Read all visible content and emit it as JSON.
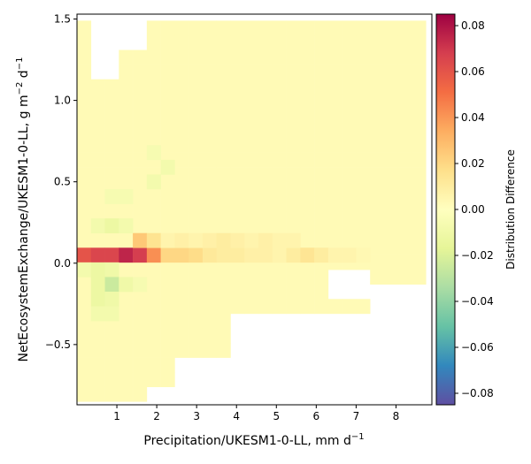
{
  "chart_data": {
    "type": "heatmap",
    "title": "",
    "xlabel": "Precipitation/UKESM1-0-LL,  mm d",
    "xlabel_sup": "−1",
    "ylabel": "NetEcosystemExchange/UKESM1-0-LL,  g m",
    "ylabel_sup1": "−2",
    "ylabel_mid": " d",
    "ylabel_sup2": "−1",
    "xlim": [
      0.0,
      8.9
    ],
    "ylim": [
      -0.87,
      1.53
    ],
    "x_ticks": [
      1,
      2,
      3,
      4,
      5,
      6,
      7,
      8
    ],
    "x_tick_labels": [
      "1",
      "2",
      "3",
      "4",
      "5",
      "6",
      "7",
      "8"
    ],
    "y_ticks": [
      -0.5,
      0.0,
      0.5,
      1.0,
      1.5
    ],
    "y_tick_labels": [
      "−0.5",
      "0.0",
      "0.5",
      "1.0",
      "1.5"
    ],
    "grid": false,
    "x_bin_width": 0.35,
    "y_bin_height": 0.09,
    "colorscale": "Spectral_r",
    "colorbar": {
      "label": "Distribution Difference",
      "range": [
        -0.085,
        0.085
      ],
      "ticks": [
        -0.08,
        -0.06,
        -0.04,
        -0.02,
        0.0,
        0.02,
        0.04,
        0.06,
        0.08
      ],
      "tick_labels": [
        "−0.08",
        "−0.06",
        "−0.04",
        "−0.02",
        "0.00",
        "0.02",
        "0.04",
        "0.06",
        "0.08"
      ]
    },
    "cells": [
      [
        0.175,
        0.05,
        0.06
      ],
      [
        0.525,
        0.05,
        0.065
      ],
      [
        0.875,
        0.05,
        0.065
      ],
      [
        1.225,
        0.05,
        0.075
      ],
      [
        1.575,
        0.05,
        0.068
      ],
      [
        1.925,
        0.05,
        0.042
      ],
      [
        2.275,
        0.05,
        0.02
      ],
      [
        2.625,
        0.05,
        0.02
      ],
      [
        2.975,
        0.05,
        0.018
      ],
      [
        3.325,
        0.05,
        0.012
      ],
      [
        3.675,
        0.05,
        0.01
      ],
      [
        4.025,
        0.05,
        0.01
      ],
      [
        4.375,
        0.05,
        0.008
      ],
      [
        4.725,
        0.05,
        0.008
      ],
      [
        5.075,
        0.05,
        0.006
      ],
      [
        5.425,
        0.05,
        0.01
      ],
      [
        5.775,
        0.05,
        0.014
      ],
      [
        6.125,
        0.05,
        0.01
      ],
      [
        6.475,
        0.05,
        0.006
      ],
      [
        6.825,
        0.05,
        0.006
      ],
      [
        7.175,
        0.05,
        0.004
      ],
      [
        1.575,
        0.14,
        0.025
      ],
      [
        1.925,
        0.14,
        0.015
      ],
      [
        2.275,
        0.14,
        0.006
      ],
      [
        2.625,
        0.14,
        0.008
      ],
      [
        2.975,
        0.14,
        0.006
      ],
      [
        3.325,
        0.14,
        0.008
      ],
      [
        3.675,
        0.14,
        0.01
      ],
      [
        4.025,
        0.14,
        0.008
      ],
      [
        4.375,
        0.14,
        0.006
      ],
      [
        4.725,
        0.14,
        0.008
      ],
      [
        5.075,
        0.14,
        0.006
      ],
      [
        5.425,
        0.14,
        0.006
      ],
      [
        0.525,
        0.23,
        -0.008
      ],
      [
        0.875,
        0.23,
        -0.012
      ],
      [
        1.225,
        0.23,
        -0.008
      ],
      [
        0.875,
        0.41,
        -0.006
      ],
      [
        1.225,
        0.41,
        -0.006
      ],
      [
        1.925,
        0.5,
        -0.008
      ],
      [
        2.275,
        0.59,
        -0.008
      ],
      [
        1.925,
        0.68,
        -0.006
      ],
      [
        0.175,
        -0.04,
        -0.008
      ],
      [
        0.525,
        -0.04,
        -0.012
      ],
      [
        0.875,
        -0.04,
        -0.01
      ],
      [
        0.525,
        -0.13,
        -0.012
      ],
      [
        0.875,
        -0.13,
        -0.025
      ],
      [
        1.225,
        -0.13,
        -0.01
      ],
      [
        1.575,
        -0.13,
        -0.006
      ],
      [
        0.525,
        -0.22,
        -0.012
      ],
      [
        0.875,
        -0.22,
        -0.01
      ],
      [
        0.525,
        -0.31,
        -0.008
      ],
      [
        0.875,
        -0.31,
        -0.008
      ]
    ]
  }
}
